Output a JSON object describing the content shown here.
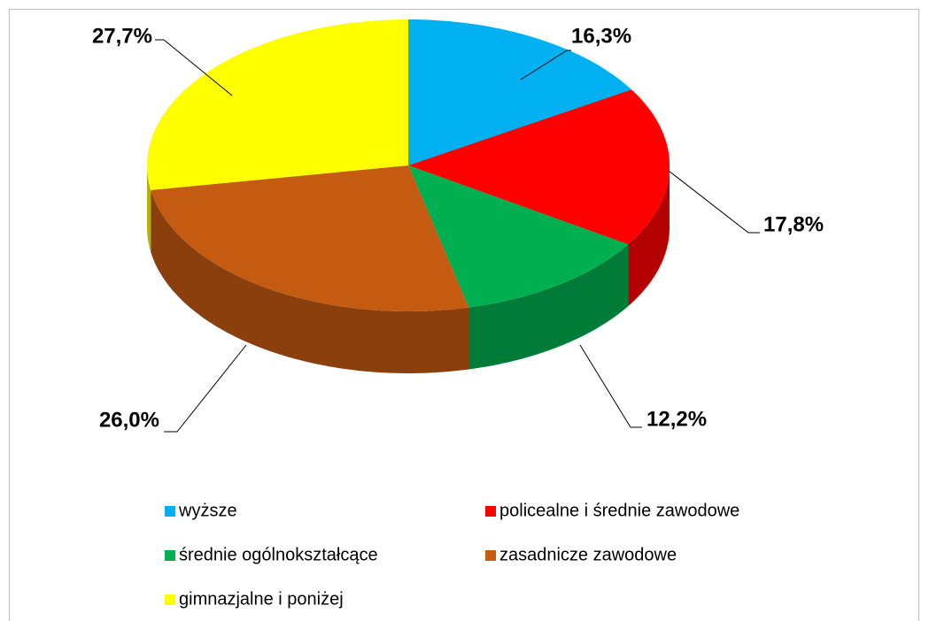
{
  "chart_data": {
    "type": "pie",
    "categories": [
      "wyższe",
      "policealne i średnie zawodowe",
      "średnie ogólnokształcące",
      "zasadnicze zawodowe",
      "gimnazjalne i poniżej"
    ],
    "values": [
      16.3,
      17.8,
      12.2,
      26.0,
      27.7
    ],
    "value_labels": [
      "16,3%",
      "17,8%",
      "12,2%",
      "26,0%",
      "27,7%"
    ],
    "colors": [
      "#00b0f0",
      "#ff0000",
      "#00b050",
      "#c55a11",
      "#ffff00"
    ],
    "legend": "bottom"
  }
}
